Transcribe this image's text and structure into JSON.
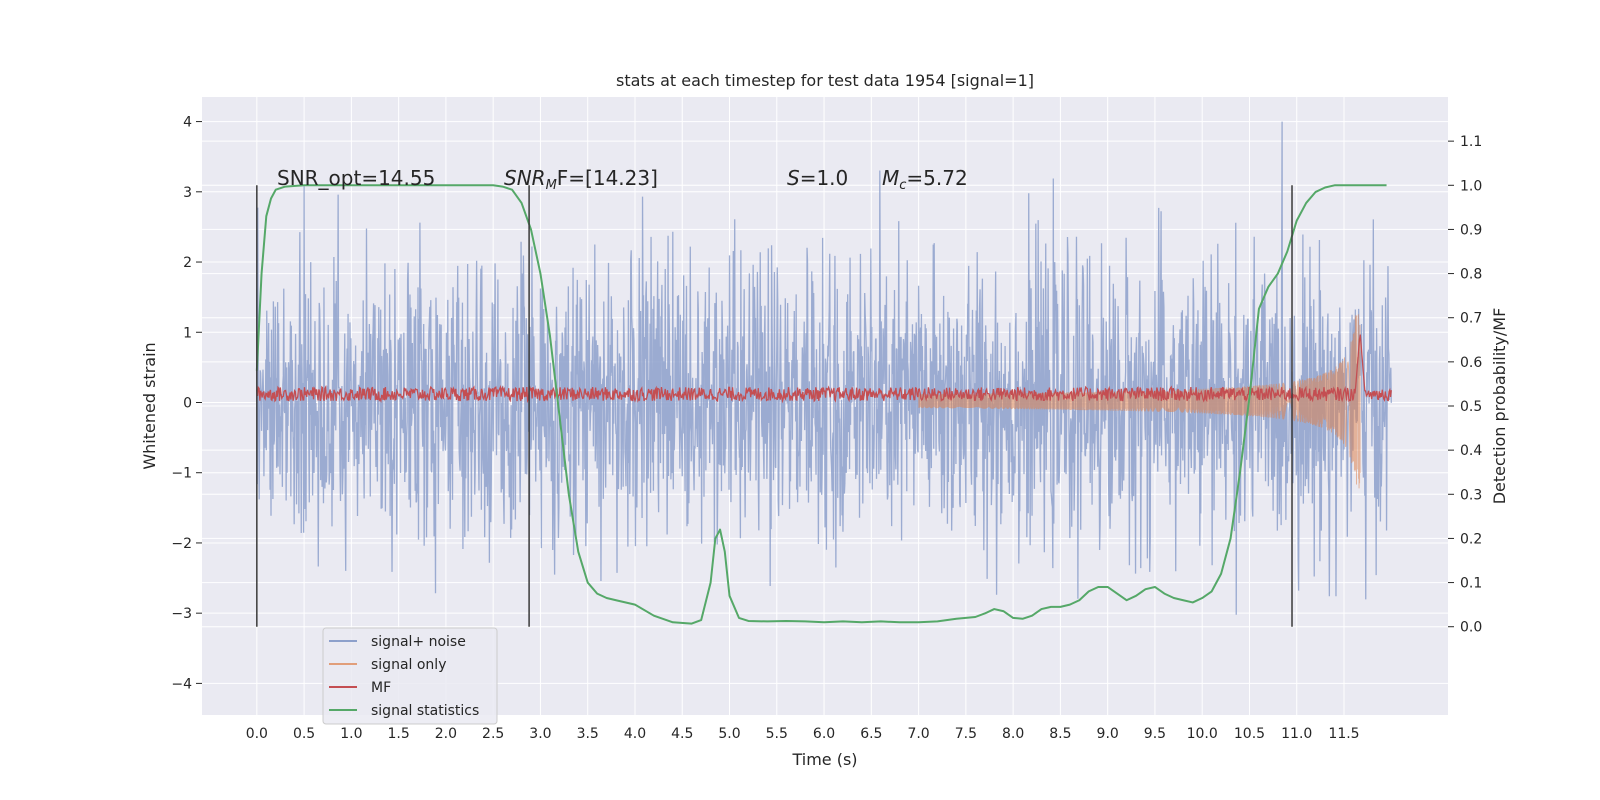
{
  "chart_data": {
    "type": "line",
    "title": "stats at each timestep for test data 1954 [signal=1]",
    "xlabel": "Time (s)",
    "ylabel_left": "Whitened strain",
    "ylabel_right": "Detection probability/MF",
    "xlim": [
      -0.58,
      12.6
    ],
    "ylim_left": [
      -4.45,
      4.35
    ],
    "ylim_right": [
      -0.2,
      1.2
    ],
    "x_ticks": [
      0.0,
      0.5,
      1.0,
      1.5,
      2.0,
      2.5,
      3.0,
      3.5,
      4.0,
      4.5,
      5.0,
      5.5,
      6.0,
      6.5,
      7.0,
      7.5,
      8.0,
      8.5,
      9.0,
      9.5,
      10.0,
      10.5,
      11.0,
      11.5
    ],
    "x_tick_labels": [
      "0.0",
      "0.5",
      "1.0",
      "1.5",
      "2.0",
      "2.5",
      "3.0",
      "3.5",
      "4.0",
      "4.5",
      "5.0",
      "5.5",
      "6.0",
      "6.5",
      "7.0",
      "7.5",
      "8.0",
      "8.5",
      "9.0",
      "9.5",
      "10.0",
      "10.5",
      "11.0",
      "11.5"
    ],
    "y_left_ticks": [
      -4,
      -3,
      -2,
      -1,
      0,
      1,
      2,
      3,
      4
    ],
    "y_left_tick_labels": [
      "−4",
      "−3",
      "−2",
      "−1",
      "0",
      "1",
      "2",
      "3",
      "4"
    ],
    "y_right_ticks": [
      0.0,
      0.1,
      0.2,
      0.3,
      0.4,
      0.5,
      0.6,
      0.7,
      0.8,
      0.9,
      1.0,
      1.1
    ],
    "y_right_tick_labels": [
      "0.0",
      "0.1",
      "0.2",
      "0.3",
      "0.4",
      "0.5",
      "0.6",
      "0.7",
      "0.8",
      "0.9",
      "1.0",
      "1.1"
    ],
    "grid": true,
    "legend_position": "lower-left",
    "vertical_markers": [
      0.0,
      2.88,
      10.95
    ],
    "vertical_marker_range": [
      0.0,
      1.0
    ],
    "annotations": {
      "snr_opt": "SNR_opt=14.55",
      "snr_mf_italic": "SNR",
      "snr_mf_sub": "M",
      "snr_mf_rest": "F=[14.23]",
      "s_italic": "S",
      "s_rest": "=1.0",
      "mc_italic": "M",
      "mc_sub": "c",
      "mc_rest": "=5.72"
    },
    "series": [
      {
        "name": "signal+ noise",
        "axis": "left",
        "style": "noise",
        "x_range": [
          0.0,
          12.0
        ],
        "amplitude": 1.0,
        "color": "#8da0cb"
      },
      {
        "name": "signal only",
        "axis": "left",
        "style": "chirp",
        "x_range": [
          7.0,
          11.67
        ],
        "peak_amplitude": 1.25,
        "color": "#dd8452"
      },
      {
        "name": "MF",
        "axis": "left",
        "style": "mf",
        "x_range": [
          0.0,
          12.0
        ],
        "baseline": 0.12,
        "peak_x": 11.67,
        "peak_value": 1.0,
        "color": "#c44e52"
      },
      {
        "name": "signal statistics",
        "axis": "right",
        "color": "#55a868",
        "x": [
          0.0,
          0.05,
          0.1,
          0.15,
          0.2,
          0.3,
          0.5,
          1.0,
          1.5,
          2.0,
          2.3,
          2.5,
          2.6,
          2.7,
          2.8,
          2.9,
          3.0,
          3.1,
          3.2,
          3.3,
          3.4,
          3.5,
          3.6,
          3.7,
          3.8,
          4.0,
          4.2,
          4.4,
          4.6,
          4.7,
          4.8,
          4.85,
          4.9,
          4.95,
          5.0,
          5.1,
          5.2,
          5.4,
          5.6,
          5.8,
          6.0,
          6.2,
          6.4,
          6.6,
          6.8,
          7.0,
          7.2,
          7.4,
          7.6,
          7.7,
          7.8,
          7.9,
          8.0,
          8.1,
          8.2,
          8.3,
          8.4,
          8.5,
          8.6,
          8.7,
          8.8,
          8.9,
          9.0,
          9.1,
          9.2,
          9.3,
          9.4,
          9.5,
          9.6,
          9.7,
          9.8,
          9.9,
          10.0,
          10.1,
          10.2,
          10.3,
          10.4,
          10.5,
          10.55,
          10.6,
          10.7,
          10.8,
          10.9,
          11.0,
          11.1,
          11.2,
          11.3,
          11.4,
          11.5,
          11.6,
          11.7,
          11.8,
          11.9,
          11.95
        ],
        "values": [
          0.58,
          0.8,
          0.93,
          0.97,
          0.99,
          0.997,
          1.0,
          1.0,
          1.0,
          1.0,
          1.0,
          1.0,
          0.997,
          0.99,
          0.96,
          0.9,
          0.8,
          0.66,
          0.48,
          0.3,
          0.17,
          0.1,
          0.075,
          0.065,
          0.06,
          0.05,
          0.025,
          0.01,
          0.007,
          0.015,
          0.1,
          0.2,
          0.22,
          0.17,
          0.07,
          0.02,
          0.013,
          0.012,
          0.013,
          0.012,
          0.01,
          0.012,
          0.01,
          0.012,
          0.01,
          0.01,
          0.012,
          0.018,
          0.022,
          0.03,
          0.04,
          0.035,
          0.02,
          0.018,
          0.025,
          0.04,
          0.045,
          0.045,
          0.05,
          0.06,
          0.08,
          0.09,
          0.09,
          0.075,
          0.06,
          0.07,
          0.085,
          0.09,
          0.075,
          0.065,
          0.06,
          0.055,
          0.065,
          0.08,
          0.12,
          0.2,
          0.35,
          0.52,
          0.62,
          0.72,
          0.77,
          0.8,
          0.85,
          0.92,
          0.96,
          0.985,
          0.995,
          1.0,
          1.0,
          1.0,
          1.0,
          1.0,
          1.0,
          1.0
        ]
      }
    ]
  }
}
